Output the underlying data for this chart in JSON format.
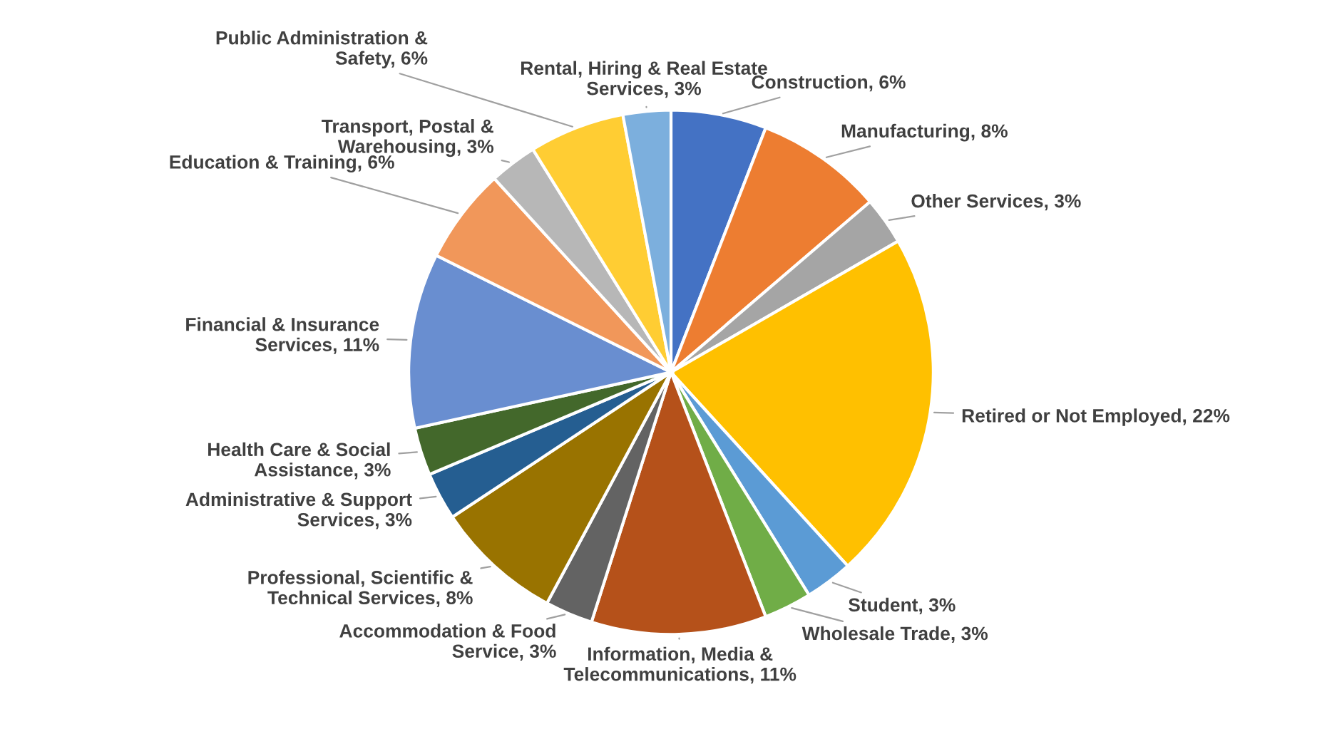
{
  "chart_data": {
    "type": "pie",
    "categories": [
      "Construction",
      "Manufacturing",
      "Other Services",
      "Retired or Not Employed",
      "Student",
      "Wholesale Trade",
      "Information, Media &\nTelecommunications",
      "Accommodation & Food\nService",
      "Professional, Scientific &\nTechnical Services",
      "Administrative & Support\nServices",
      "Health Care & Social\nAssistance",
      "Financial & Insurance\nServices",
      "Education & Training",
      "Transport, Postal &\nWarehousing",
      "Public Administration &\nSafety",
      "Rental, Hiring & Real Estate\nServices"
    ],
    "values": [
      6,
      8,
      3,
      22,
      3,
      3,
      11,
      3,
      8,
      3,
      3,
      11,
      6,
      3,
      6,
      3
    ],
    "value_labels": [
      "6%",
      "8%",
      "3%",
      "22%",
      "3%",
      "3%",
      "11%",
      "3%",
      "8%",
      "3%",
      "3%",
      "11%",
      "6%",
      "3%",
      "6%",
      "3%"
    ],
    "colors": [
      "#4472c4",
      "#ed7d31",
      "#a5a5a5",
      "#ffc000",
      "#5b9bd5",
      "#70ad47",
      "#b5511a",
      "#636363",
      "#997300",
      "#255e91",
      "#43682b",
      "#698ed0",
      "#f1975a",
      "#b7b7b7",
      "#ffcd33",
      "#7cafdd"
    ],
    "legend": false
  }
}
